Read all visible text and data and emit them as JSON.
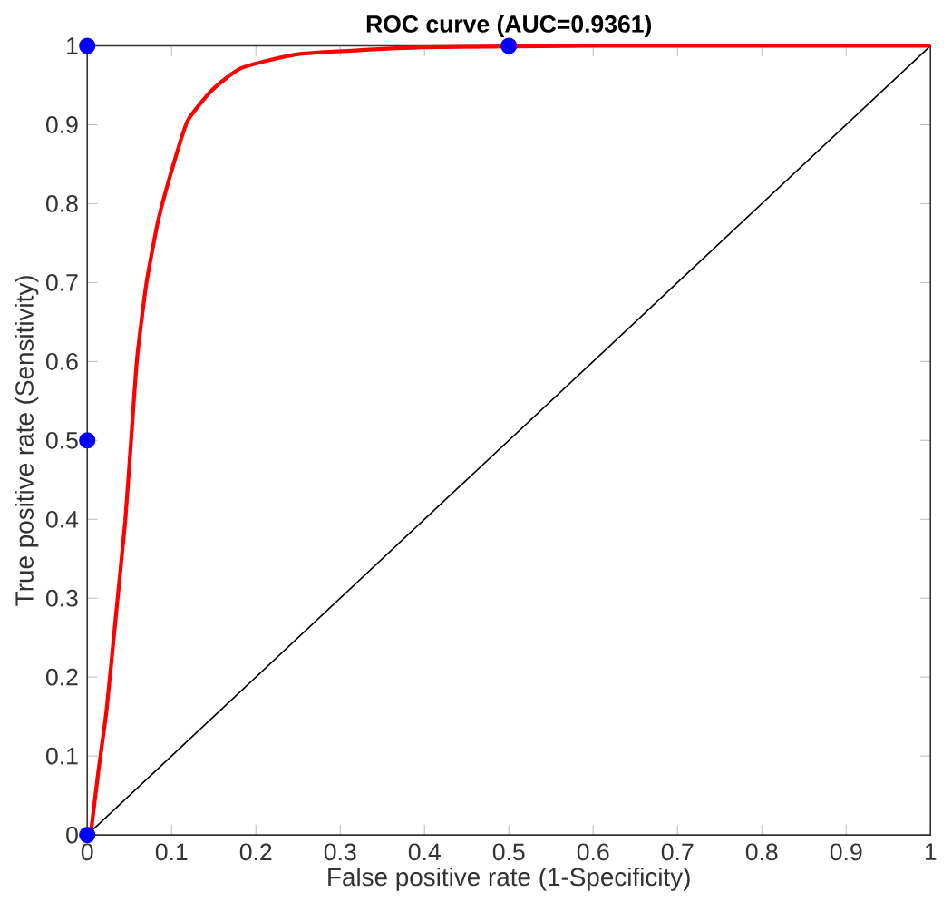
{
  "chart_data": {
    "type": "line",
    "title": "ROC curve (AUC=0.9361)",
    "xlabel": "False positive rate (1-Specificity)",
    "ylabel": "True positive rate (Sensitivity)",
    "xlim": [
      0,
      1
    ],
    "ylim": [
      0,
      1
    ],
    "xticks": [
      0,
      0.1,
      0.2,
      0.3,
      0.4,
      0.5,
      0.6,
      0.7,
      0.8,
      0.9,
      1
    ],
    "yticks": [
      0,
      0.1,
      0.2,
      0.3,
      0.4,
      0.5,
      0.6,
      0.7,
      0.8,
      0.9,
      1
    ],
    "grid": false,
    "series": [
      {
        "color": "#000000",
        "x": [
          0,
          1
        ],
        "values": [
          0,
          1
        ]
      },
      {
        "color": "#ff0000",
        "x": [
          0.004,
          0.013,
          0.023,
          0.034,
          0.045,
          0.052,
          0.059,
          0.07,
          0.084,
          0.102,
          0.119,
          0.148,
          0.183,
          0.254,
          0.397,
          0.6,
          1
        ],
        "values": [
          0,
          0.079,
          0.159,
          0.278,
          0.397,
          0.5,
          0.603,
          0.698,
          0.778,
          0.849,
          0.905,
          0.944,
          0.972,
          0.99,
          0.998,
          1,
          1
        ]
      },
      {
        "type": "scatter",
        "color": "#0000ff",
        "marker": "circle",
        "x": [
          0,
          0,
          0,
          0.5
        ],
        "values": [
          0,
          0.5,
          1,
          1
        ]
      }
    ]
  }
}
